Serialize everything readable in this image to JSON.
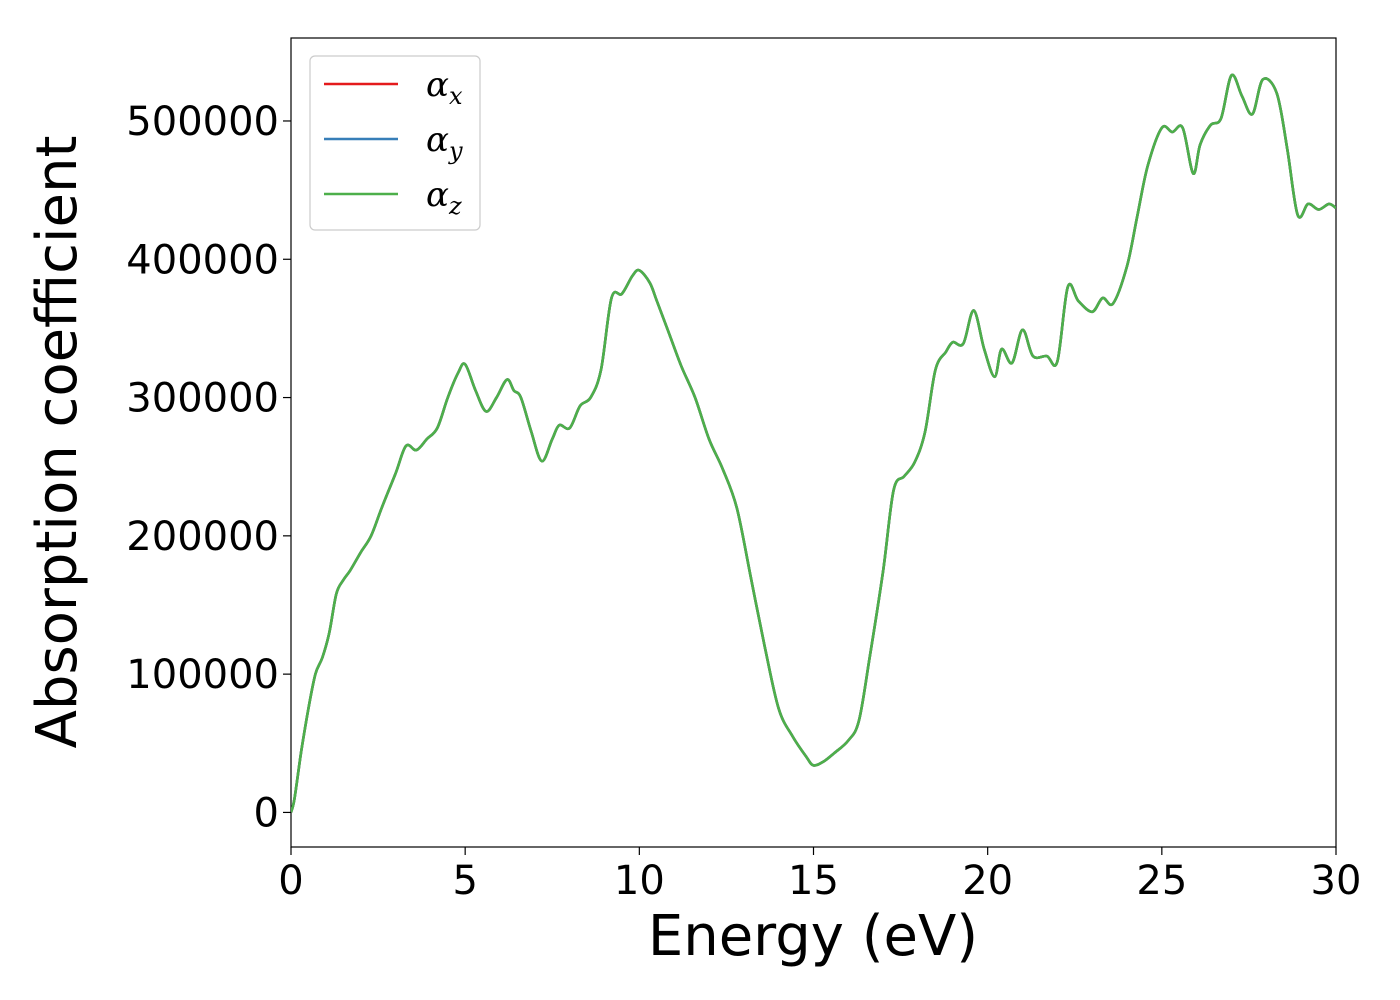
{
  "chart_data": {
    "type": "line",
    "xlabel": "Energy (eV)",
    "ylabel": "Absorption coefficient",
    "xlim": [
      0,
      30
    ],
    "ylim": [
      -25000,
      560000
    ],
    "xticks": [
      0,
      5,
      10,
      15,
      20,
      25,
      30
    ],
    "yticks": [
      0,
      100000,
      200000,
      300000,
      400000,
      500000
    ],
    "grid": false,
    "legend_position": "top-left",
    "series": [
      {
        "name": "α",
        "subscript": "x",
        "color": "#e41a1c"
      },
      {
        "name": "α",
        "subscript": "y",
        "color": "#377eb8"
      },
      {
        "name": "α",
        "subscript": "z",
        "color": "#4daf4a"
      }
    ],
    "x": [
      0,
      0.1,
      0.3,
      0.5,
      0.7,
      0.9,
      1.1,
      1.3,
      1.5,
      1.7,
      2.0,
      2.3,
      2.6,
      3.0,
      3.3,
      3.6,
      3.9,
      4.2,
      4.5,
      4.8,
      5.0,
      5.3,
      5.6,
      5.9,
      6.2,
      6.4,
      6.6,
      6.9,
      7.2,
      7.5,
      7.7,
      8.0,
      8.3,
      8.6,
      8.9,
      9.2,
      9.5,
      9.8,
      10.0,
      10.3,
      10.5,
      10.8,
      11.2,
      11.6,
      12.0,
      12.4,
      12.8,
      13.2,
      13.6,
      14.0,
      14.4,
      14.8,
      15.0,
      15.3,
      15.6,
      16.0,
      16.3,
      16.6,
      17.0,
      17.3,
      17.6,
      17.9,
      18.2,
      18.5,
      18.8,
      19.0,
      19.3,
      19.6,
      19.9,
      20.2,
      20.4,
      20.7,
      21.0,
      21.3,
      21.7,
      22.0,
      22.3,
      22.6,
      23.0,
      23.3,
      23.6,
      24.0,
      24.3,
      24.6,
      25.0,
      25.3,
      25.6,
      25.9,
      26.1,
      26.4,
      26.7,
      27.0,
      27.3,
      27.6,
      27.9,
      28.3,
      28.6,
      28.9,
      29.2,
      29.5,
      29.8,
      30.0
    ],
    "y": [
      0,
      10000,
      45000,
      75000,
      100000,
      112000,
      130000,
      158000,
      168000,
      175000,
      188000,
      200000,
      220000,
      245000,
      265000,
      262000,
      270000,
      278000,
      300000,
      318000,
      324000,
      305000,
      290000,
      300000,
      313000,
      305000,
      300000,
      275000,
      254000,
      270000,
      280000,
      278000,
      294000,
      300000,
      320000,
      372000,
      375000,
      388000,
      392000,
      383000,
      370000,
      350000,
      323000,
      300000,
      270000,
      248000,
      220000,
      170000,
      120000,
      75000,
      55000,
      40000,
      34000,
      37000,
      43000,
      52000,
      66000,
      110000,
      175000,
      233000,
      243000,
      253000,
      275000,
      320000,
      333000,
      340000,
      339000,
      363000,
      335000,
      315000,
      335000,
      325000,
      349000,
      330000,
      330000,
      326000,
      380000,
      370000,
      362000,
      372000,
      368000,
      395000,
      432000,
      468000,
      495000,
      492000,
      495000,
      462000,
      483000,
      497000,
      502000,
      533000,
      518000,
      505000,
      530000,
      520000,
      480000,
      432000,
      440000,
      436000,
      440000,
      437000
    ]
  }
}
